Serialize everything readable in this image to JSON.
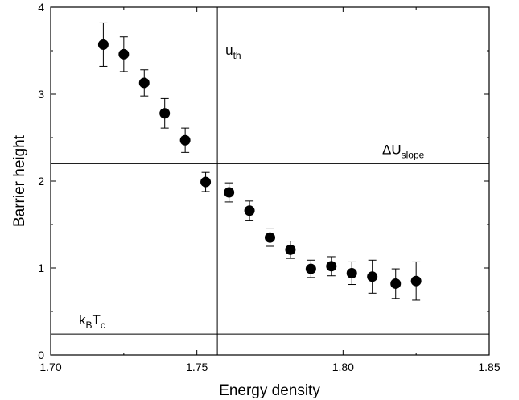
{
  "chart_data": {
    "type": "scatter",
    "xlabel": "Energy density",
    "ylabel": "Barrier height",
    "xlim": [
      1.7,
      1.85
    ],
    "ylim": [
      0,
      4
    ],
    "x_ticks": [
      "1.70",
      "1.75",
      "1.80",
      "1.85"
    ],
    "y_ticks": [
      "0",
      "1",
      "2",
      "3",
      "4"
    ],
    "grid": false,
    "points": [
      {
        "x": 1.718,
        "y": 3.57,
        "err": 0.25
      },
      {
        "x": 1.725,
        "y": 3.46,
        "err": 0.2
      },
      {
        "x": 1.732,
        "y": 3.13,
        "err": 0.15
      },
      {
        "x": 1.739,
        "y": 2.78,
        "err": 0.17
      },
      {
        "x": 1.746,
        "y": 2.47,
        "err": 0.14
      },
      {
        "x": 1.753,
        "y": 1.99,
        "err": 0.11
      },
      {
        "x": 1.761,
        "y": 1.87,
        "err": 0.11
      },
      {
        "x": 1.768,
        "y": 1.66,
        "err": 0.11
      },
      {
        "x": 1.775,
        "y": 1.35,
        "err": 0.1
      },
      {
        "x": 1.782,
        "y": 1.21,
        "err": 0.1
      },
      {
        "x": 1.789,
        "y": 0.99,
        "err": 0.1
      },
      {
        "x": 1.796,
        "y": 1.02,
        "err": 0.11
      },
      {
        "x": 1.803,
        "y": 0.94,
        "err": 0.13
      },
      {
        "x": 1.81,
        "y": 0.9,
        "err": 0.19
      },
      {
        "x": 1.818,
        "y": 0.82,
        "err": 0.17
      },
      {
        "x": 1.825,
        "y": 0.85,
        "err": 0.22
      }
    ],
    "reference_lines": {
      "vertical": {
        "x": 1.757,
        "label_main": "u",
        "label_sub": "th"
      },
      "horizontal": [
        {
          "y": 2.2,
          "label_main": "ΔU",
          "label_sub": "slope"
        },
        {
          "y": 0.24,
          "label_main": "k",
          "label_sub": "B",
          "label_main2": "T",
          "label_sub2": "c"
        }
      ]
    }
  }
}
